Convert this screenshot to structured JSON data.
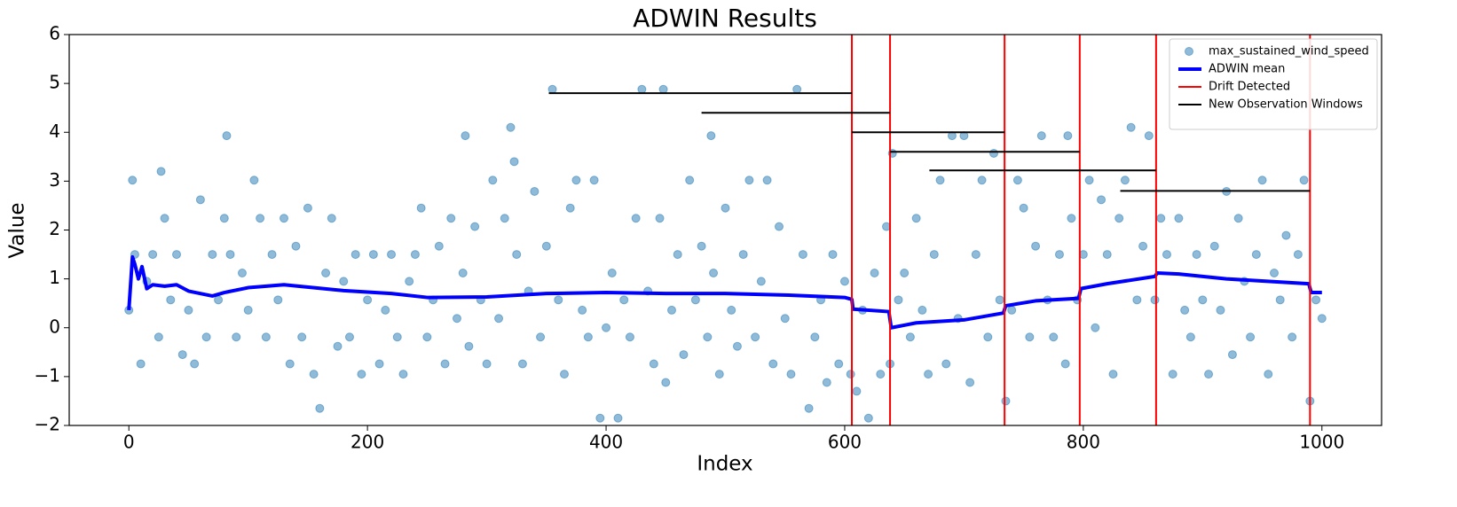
{
  "chart_data": {
    "type": "scatter",
    "title": "ADWIN Results",
    "xlabel": "Index",
    "ylabel": "Value",
    "xlim": [
      -50,
      1050
    ],
    "ylim": [
      -2,
      6
    ],
    "xticks": [
      0,
      200,
      400,
      600,
      800,
      1000
    ],
    "yticks": [
      {
        "value": -2,
        "label": "−2"
      },
      {
        "value": -1,
        "label": "−1"
      },
      0,
      1,
      2,
      3,
      4,
      5,
      6
    ],
    "legend_loc": "upper right",
    "series": [
      {
        "name": "max_sustained_wind_speed",
        "kind": "scatter",
        "color": "#1f77b4",
        "x": [
          0,
          3,
          5,
          10,
          15,
          20,
          25,
          27,
          30,
          35,
          40,
          45,
          50,
          55,
          60,
          65,
          70,
          75,
          80,
          82,
          85,
          90,
          95,
          100,
          105,
          110,
          115,
          120,
          125,
          130,
          135,
          140,
          145,
          150,
          155,
          160,
          165,
          170,
          175,
          180,
          185,
          190,
          195,
          200,
          205,
          210,
          215,
          220,
          225,
          230,
          235,
          240,
          245,
          250,
          255,
          260,
          265,
          270,
          275,
          280,
          282,
          285,
          290,
          295,
          300,
          305,
          310,
          315,
          320,
          323,
          325,
          330,
          335,
          340,
          345,
          350,
          355,
          360,
          365,
          370,
          375,
          380,
          385,
          390,
          395,
          400,
          405,
          410,
          415,
          420,
          425,
          430,
          435,
          440,
          445,
          448,
          450,
          455,
          460,
          465,
          470,
          475,
          480,
          485,
          488,
          490,
          495,
          500,
          505,
          510,
          515,
          520,
          525,
          530,
          535,
          540,
          545,
          550,
          555,
          560,
          565,
          570,
          575,
          580,
          585,
          590,
          595,
          600,
          605,
          610,
          615,
          620,
          625,
          630,
          635,
          638,
          640,
          645,
          650,
          655,
          660,
          665,
          670,
          675,
          680,
          685,
          690,
          695,
          700,
          705,
          710,
          715,
          720,
          725,
          730,
          735,
          740,
          745,
          750,
          755,
          760,
          765,
          770,
          775,
          780,
          785,
          787,
          790,
          795,
          800,
          805,
          810,
          815,
          820,
          825,
          830,
          835,
          840,
          845,
          850,
          855,
          860,
          865,
          870,
          875,
          880,
          885,
          890,
          895,
          900,
          905,
          910,
          915,
          920,
          925,
          930,
          935,
          940,
          945,
          950,
          955,
          960,
          965,
          970,
          975,
          980,
          985,
          990,
          995,
          1000
        ],
        "values": [
          0.36,
          3.02,
          1.5,
          -0.74,
          0.95,
          1.5,
          -0.19,
          3.2,
          2.24,
          0.57,
          1.5,
          -0.55,
          0.36,
          -0.74,
          2.62,
          -0.19,
          1.5,
          0.57,
          2.24,
          3.93,
          1.5,
          -0.19,
          1.12,
          0.36,
          3.02,
          2.24,
          -0.19,
          1.5,
          0.57,
          2.24,
          -0.74,
          1.67,
          -0.19,
          2.45,
          -0.95,
          -1.65,
          1.12,
          2.24,
          -0.38,
          0.95,
          -0.19,
          1.5,
          -0.95,
          0.57,
          1.5,
          -0.74,
          0.36,
          1.5,
          -0.19,
          -0.95,
          0.95,
          1.5,
          2.45,
          -0.19,
          0.57,
          1.67,
          -0.74,
          2.24,
          0.19,
          1.12,
          3.93,
          -0.38,
          2.07,
          0.57,
          -0.74,
          3.02,
          0.19,
          2.24,
          4.1,
          3.4,
          1.5,
          -0.74,
          0.75,
          2.79,
          -0.19,
          1.67,
          4.88,
          0.57,
          -0.95,
          2.45,
          3.02,
          0.36,
          -0.19,
          3.02,
          -1.85,
          0.0,
          1.12,
          -1.85,
          0.57,
          -0.19,
          2.24,
          4.88,
          0.75,
          -0.74,
          2.24,
          4.88,
          -1.12,
          0.36,
          1.5,
          -0.55,
          3.02,
          0.57,
          1.67,
          -0.19,
          3.93,
          1.12,
          -0.95,
          2.45,
          0.36,
          -0.38,
          1.5,
          3.02,
          -0.19,
          0.95,
          3.02,
          -0.74,
          2.07,
          0.19,
          -0.95,
          4.88,
          1.5,
          -1.65,
          -0.19,
          0.57,
          -1.12,
          1.5,
          -0.74,
          0.95,
          -0.95,
          -1.3,
          0.36,
          -1.85,
          1.12,
          -0.95,
          2.07,
          -0.74,
          3.57,
          0.57,
          1.12,
          -0.19,
          2.24,
          0.36,
          -0.95,
          1.5,
          3.02,
          -0.74,
          3.93,
          0.19,
          3.93,
          -1.12,
          1.5,
          3.02,
          -0.19,
          3.57,
          0.57,
          -1.5,
          0.36,
          3.02,
          2.45,
          -0.19,
          1.67,
          3.93,
          0.57,
          -0.19,
          1.5,
          -0.74,
          3.93,
          2.24,
          0.57,
          1.5,
          3.02,
          0.0,
          2.62,
          1.5,
          -0.95,
          2.24,
          3.02,
          4.1,
          0.57,
          1.67,
          3.93,
          0.57,
          2.24,
          1.5,
          -0.95,
          2.24,
          0.36,
          -0.19,
          1.5,
          0.57,
          -0.95,
          1.67,
          0.36,
          2.79,
          -0.55,
          2.24,
          0.95,
          -0.19,
          1.5,
          3.02,
          -0.95,
          1.12,
          0.57,
          1.89,
          -0.19,
          1.5,
          3.02,
          -1.5,
          0.57,
          0.19
        ]
      },
      {
        "name": "ADWIN mean",
        "kind": "line",
        "color": "#0000ff",
        "x": [
          0,
          3,
          5,
          8,
          11,
          15,
          20,
          30,
          40,
          50,
          60,
          70,
          80,
          100,
          130,
          180,
          220,
          250,
          300,
          350,
          400,
          450,
          500,
          550,
          600,
          606,
          607,
          637,
          639,
          660,
          700,
          733,
          735,
          760,
          796,
          798,
          820,
          860,
          862,
          880,
          920,
          989,
          991,
          1000
        ],
        "values": [
          0.36,
          1.45,
          1.3,
          1.0,
          1.25,
          0.8,
          0.88,
          0.85,
          0.88,
          0.75,
          0.7,
          0.65,
          0.72,
          0.82,
          0.88,
          0.76,
          0.7,
          0.62,
          0.63,
          0.7,
          0.72,
          0.7,
          0.7,
          0.67,
          0.62,
          0.58,
          0.38,
          0.33,
          0.0,
          0.1,
          0.16,
          0.3,
          0.45,
          0.55,
          0.6,
          0.8,
          0.9,
          1.05,
          1.12,
          1.1,
          1.0,
          0.9,
          0.72,
          0.72
        ]
      },
      {
        "name": "Drift Detected",
        "kind": "vline",
        "color": "#ff0000",
        "x": [
          606,
          638,
          734,
          797,
          861,
          990
        ]
      },
      {
        "name": "New Observation Windows",
        "kind": "hsegments",
        "color": "#000000",
        "x_start": [
          352,
          480,
          606,
          638,
          671,
          831
        ],
        "x_end": [
          606,
          638,
          734,
          797,
          861,
          990
        ],
        "values": [
          4.8,
          4.4,
          4.0,
          3.6,
          3.22,
          2.8
        ]
      }
    ]
  }
}
